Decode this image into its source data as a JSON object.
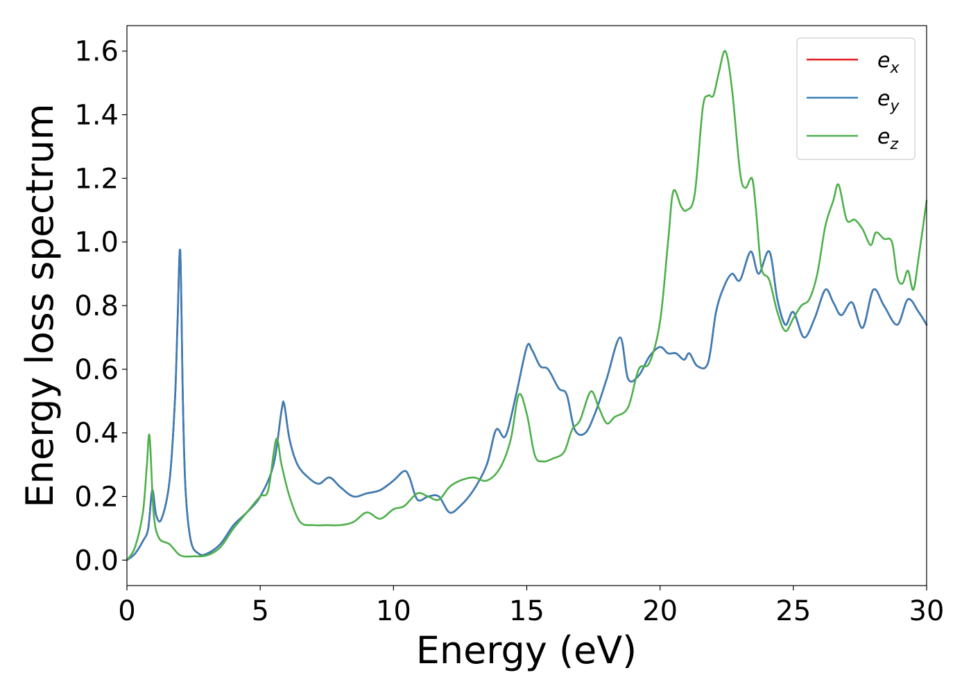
{
  "chart_data": {
    "type": "line",
    "title": "",
    "xlabel": "Energy (eV)",
    "ylabel": "Energy loss spectrum",
    "xlim": [
      0,
      30
    ],
    "ylim": [
      -0.08,
      1.68
    ],
    "xticks": [
      0,
      5,
      10,
      15,
      20,
      25,
      30
    ],
    "xtick_labels": [
      "0",
      "5",
      "10",
      "15",
      "20",
      "25",
      "30"
    ],
    "yticks": [
      0.0,
      0.2,
      0.4,
      0.6,
      0.8,
      1.0,
      1.2,
      1.4,
      1.6
    ],
    "ytick_labels": [
      "0.0",
      "0.2",
      "0.4",
      "0.6",
      "0.8",
      "1.0",
      "1.2",
      "1.4",
      "1.6"
    ],
    "grid": false,
    "legend_position": "top-right",
    "series": [
      {
        "name": "e",
        "subscript": "x",
        "color": "#e41a1c",
        "x": [
          0,
          0.3,
          0.6,
          0.8,
          0.95,
          1.1,
          1.3,
          1.6,
          1.8,
          1.9,
          2.0,
          2.1,
          2.2,
          2.4,
          2.7,
          3.0,
          3.5,
          4.0,
          4.5,
          5.0,
          5.5,
          5.8,
          5.9,
          6.1,
          6.4,
          6.8,
          7.2,
          7.6,
          8.0,
          8.5,
          9.0,
          9.5,
          10.0,
          10.4,
          10.6,
          10.9,
          11.3,
          11.7,
          12.1,
          12.5,
          13.0,
          13.5,
          13.85,
          14.2,
          14.6,
          15.0,
          15.2,
          15.5,
          15.8,
          16.2,
          16.5,
          16.8,
          17.2,
          17.6,
          18.0,
          18.5,
          18.8,
          19.2,
          19.6,
          20.0,
          20.3,
          20.6,
          20.9,
          21.1,
          21.4,
          21.8,
          22.1,
          22.4,
          22.7,
          23.0,
          23.4,
          23.7,
          24.1,
          24.4,
          24.7,
          25.0,
          25.4,
          25.8,
          26.2,
          26.5,
          26.8,
          27.2,
          27.6,
          28.0,
          28.4,
          28.9,
          29.3,
          29.7,
          30.0
        ],
        "y": [
          0.0,
          0.02,
          0.06,
          0.1,
          0.22,
          0.14,
          0.13,
          0.25,
          0.5,
          0.75,
          0.97,
          0.5,
          0.22,
          0.06,
          0.02,
          0.02,
          0.05,
          0.11,
          0.15,
          0.2,
          0.3,
          0.47,
          0.49,
          0.38,
          0.3,
          0.26,
          0.24,
          0.26,
          0.23,
          0.2,
          0.21,
          0.22,
          0.25,
          0.28,
          0.26,
          0.19,
          0.2,
          0.2,
          0.15,
          0.17,
          0.22,
          0.3,
          0.41,
          0.39,
          0.52,
          0.67,
          0.66,
          0.61,
          0.6,
          0.54,
          0.52,
          0.41,
          0.4,
          0.47,
          0.57,
          0.7,
          0.57,
          0.58,
          0.64,
          0.67,
          0.65,
          0.65,
          0.63,
          0.65,
          0.61,
          0.62,
          0.78,
          0.86,
          0.9,
          0.88,
          0.97,
          0.9,
          0.97,
          0.82,
          0.74,
          0.78,
          0.7,
          0.76,
          0.85,
          0.81,
          0.77,
          0.81,
          0.73,
          0.85,
          0.8,
          0.74,
          0.82,
          0.78,
          0.74
        ]
      },
      {
        "name": "e",
        "subscript": "y",
        "color": "#377eb8",
        "x": [
          0,
          0.3,
          0.6,
          0.8,
          0.95,
          1.1,
          1.3,
          1.6,
          1.8,
          1.9,
          2.0,
          2.1,
          2.2,
          2.4,
          2.7,
          3.0,
          3.5,
          4.0,
          4.5,
          5.0,
          5.5,
          5.8,
          5.9,
          6.1,
          6.4,
          6.8,
          7.2,
          7.6,
          8.0,
          8.5,
          9.0,
          9.5,
          10.0,
          10.4,
          10.6,
          10.9,
          11.3,
          11.7,
          12.1,
          12.5,
          13.0,
          13.5,
          13.85,
          14.2,
          14.6,
          15.0,
          15.2,
          15.5,
          15.8,
          16.2,
          16.5,
          16.8,
          17.2,
          17.6,
          18.0,
          18.5,
          18.8,
          19.2,
          19.6,
          20.0,
          20.3,
          20.6,
          20.9,
          21.1,
          21.4,
          21.8,
          22.1,
          22.4,
          22.7,
          23.0,
          23.4,
          23.7,
          24.1,
          24.4,
          24.7,
          25.0,
          25.4,
          25.8,
          26.2,
          26.5,
          26.8,
          27.2,
          27.6,
          28.0,
          28.4,
          28.9,
          29.3,
          29.7,
          30.0
        ],
        "y": [
          0.0,
          0.02,
          0.06,
          0.1,
          0.22,
          0.14,
          0.13,
          0.25,
          0.5,
          0.75,
          0.97,
          0.5,
          0.22,
          0.06,
          0.02,
          0.02,
          0.05,
          0.11,
          0.15,
          0.2,
          0.3,
          0.47,
          0.49,
          0.38,
          0.3,
          0.26,
          0.24,
          0.26,
          0.23,
          0.2,
          0.21,
          0.22,
          0.25,
          0.28,
          0.26,
          0.19,
          0.2,
          0.2,
          0.15,
          0.17,
          0.22,
          0.3,
          0.41,
          0.39,
          0.52,
          0.67,
          0.66,
          0.61,
          0.6,
          0.54,
          0.52,
          0.41,
          0.4,
          0.47,
          0.57,
          0.7,
          0.57,
          0.58,
          0.64,
          0.67,
          0.65,
          0.65,
          0.63,
          0.65,
          0.61,
          0.62,
          0.78,
          0.86,
          0.9,
          0.88,
          0.97,
          0.9,
          0.97,
          0.82,
          0.74,
          0.78,
          0.7,
          0.76,
          0.85,
          0.81,
          0.77,
          0.81,
          0.73,
          0.85,
          0.8,
          0.74,
          0.82,
          0.78,
          0.74
        ]
      },
      {
        "name": "e",
        "subscript": "z",
        "color": "#4daf4a",
        "x": [
          0,
          0.3,
          0.6,
          0.75,
          0.85,
          1.0,
          1.2,
          1.6,
          2.0,
          2.5,
          3.0,
          3.5,
          4.0,
          4.5,
          5.0,
          5.3,
          5.6,
          5.8,
          6.1,
          6.5,
          7.0,
          7.5,
          8.0,
          8.5,
          9.0,
          9.5,
          10.0,
          10.4,
          10.9,
          11.3,
          11.7,
          12.1,
          12.5,
          13.0,
          13.5,
          14.0,
          14.4,
          14.7,
          15.0,
          15.3,
          15.6,
          16.0,
          16.4,
          16.7,
          17.0,
          17.4,
          17.7,
          18.0,
          18.3,
          18.8,
          19.2,
          19.6,
          20.0,
          20.3,
          20.5,
          20.8,
          21.0,
          21.3,
          21.6,
          21.8,
          22.0,
          22.2,
          22.45,
          22.7,
          23.0,
          23.2,
          23.45,
          23.6,
          23.8,
          24.1,
          24.4,
          24.7,
          25.0,
          25.3,
          25.6,
          25.9,
          26.2,
          26.5,
          26.7,
          27.0,
          27.3,
          27.6,
          27.9,
          28.1,
          28.4,
          28.7,
          28.9,
          29.1,
          29.3,
          29.5,
          29.7,
          30.0
        ],
        "y": [
          0.0,
          0.04,
          0.15,
          0.3,
          0.39,
          0.15,
          0.07,
          0.05,
          0.015,
          0.012,
          0.015,
          0.04,
          0.1,
          0.15,
          0.2,
          0.22,
          0.38,
          0.3,
          0.2,
          0.12,
          0.11,
          0.11,
          0.11,
          0.12,
          0.15,
          0.13,
          0.16,
          0.17,
          0.21,
          0.2,
          0.19,
          0.23,
          0.25,
          0.26,
          0.25,
          0.29,
          0.38,
          0.52,
          0.46,
          0.33,
          0.31,
          0.32,
          0.34,
          0.41,
          0.44,
          0.53,
          0.48,
          0.43,
          0.45,
          0.48,
          0.6,
          0.62,
          0.75,
          1.0,
          1.16,
          1.11,
          1.1,
          1.15,
          1.42,
          1.46,
          1.46,
          1.53,
          1.6,
          1.48,
          1.22,
          1.17,
          1.2,
          1.1,
          0.92,
          0.88,
          0.78,
          0.72,
          0.76,
          0.8,
          0.82,
          0.9,
          1.05,
          1.13,
          1.18,
          1.07,
          1.07,
          1.04,
          0.99,
          1.03,
          1.01,
          1.0,
          0.89,
          0.87,
          0.91,
          0.85,
          0.95,
          1.13
        ]
      }
    ]
  }
}
